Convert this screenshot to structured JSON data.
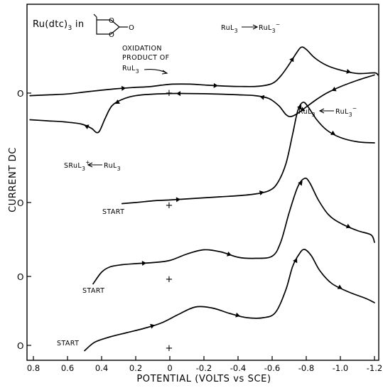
{
  "chart_data": {
    "type": "line",
    "title": "Ru(dtc)3 in",
    "xlabel": "POTENTIAL (VOLTS vs SCE)",
    "ylabel": "CURRENT DC",
    "xlim": [
      0.8,
      -1.2
    ],
    "x_reversed": true,
    "x_ticks": [
      {
        "value": 0.8,
        "label": "0.8"
      },
      {
        "value": 0.6,
        "label": "0.6"
      },
      {
        "value": 0.4,
        "label": "0.4"
      },
      {
        "value": 0.2,
        "label": "0.2"
      },
      {
        "value": 0.0,
        "label": "0"
      },
      {
        "value": -0.2,
        "label": "-0.2"
      },
      {
        "value": -0.4,
        "label": "-0.4"
      },
      {
        "value": -0.6,
        "label": "-0.6"
      },
      {
        "value": -0.8,
        "label": "-0.8"
      },
      {
        "value": -1.0,
        "label": "-1.0"
      },
      {
        "value": -1.2,
        "label": "-1.2"
      }
    ],
    "y_units": "arbitrary (traces offset vertically)",
    "series": [
      {
        "zero_label": "O",
        "start_label": "",
        "forward": [
          [
            0.82,
            -0.12
          ],
          [
            0.7,
            -0.08
          ],
          [
            0.6,
            -0.04
          ],
          [
            0.5,
            0.05
          ],
          [
            0.42,
            0.12
          ],
          [
            0.32,
            0.2
          ],
          [
            0.22,
            0.26
          ],
          [
            0.12,
            0.3
          ],
          [
            0.05,
            0.37
          ],
          [
            -0.02,
            0.42
          ],
          [
            -0.12,
            0.42
          ],
          [
            -0.22,
            0.37
          ],
          [
            -0.32,
            0.33
          ],
          [
            -0.42,
            0.31
          ],
          [
            -0.52,
            0.32
          ],
          [
            -0.6,
            0.45
          ],
          [
            -0.65,
            0.8
          ],
          [
            -0.7,
            1.35
          ],
          [
            -0.74,
            1.85
          ],
          [
            -0.77,
            2.15
          ],
          [
            -0.8,
            2.05
          ],
          [
            -0.85,
            1.65
          ],
          [
            -0.92,
            1.3
          ],
          [
            -1.0,
            1.08
          ],
          [
            -1.1,
            0.92
          ],
          [
            -1.2,
            0.95
          ],
          [
            -1.22,
            0.85
          ]
        ],
        "reverse": [
          [
            -1.2,
            0.85
          ],
          [
            -1.1,
            0.6
          ],
          [
            -1.0,
            0.3
          ],
          [
            -0.92,
            0.0
          ],
          [
            -0.86,
            -0.3
          ],
          [
            -0.8,
            -0.65
          ],
          [
            -0.75,
            -0.95
          ],
          [
            -0.71,
            -1.1
          ],
          [
            -0.68,
            -1.0
          ],
          [
            -0.64,
            -0.6
          ],
          [
            -0.58,
            -0.25
          ],
          [
            -0.5,
            -0.12
          ],
          [
            -0.4,
            -0.08
          ],
          [
            -0.3,
            -0.05
          ],
          [
            -0.2,
            -0.03
          ],
          [
            -0.1,
            -0.02
          ],
          [
            0.0,
            -0.02
          ],
          [
            0.1,
            -0.05
          ],
          [
            0.2,
            -0.12
          ],
          [
            0.28,
            -0.3
          ],
          [
            0.34,
            -0.6
          ],
          [
            0.38,
            -1.2
          ],
          [
            0.41,
            -1.75
          ],
          [
            0.43,
            -1.85
          ],
          [
            0.46,
            -1.65
          ],
          [
            0.52,
            -1.45
          ],
          [
            0.62,
            -1.35
          ],
          [
            0.72,
            -1.3
          ],
          [
            0.82,
            -1.25
          ]
        ]
      },
      {
        "zero_label": "O",
        "start_label": "START",
        "forward": [
          [
            0.28,
            -0.05
          ],
          [
            0.2,
            0.0
          ],
          [
            0.1,
            0.08
          ],
          [
            0.0,
            0.12
          ],
          [
            -0.1,
            0.17
          ],
          [
            -0.2,
            0.22
          ],
          [
            -0.3,
            0.27
          ],
          [
            -0.4,
            0.32
          ],
          [
            -0.5,
            0.4
          ],
          [
            -0.58,
            0.55
          ],
          [
            -0.63,
            0.9
          ],
          [
            -0.68,
            1.8
          ],
          [
            -0.72,
            3.2
          ],
          [
            -0.75,
            4.3
          ],
          [
            -0.78,
            4.7
          ],
          [
            -0.81,
            4.5
          ],
          [
            -0.86,
            3.9
          ],
          [
            -0.92,
            3.4
          ],
          [
            -1.0,
            3.05
          ],
          [
            -1.1,
            2.85
          ],
          [
            -1.2,
            2.8
          ]
        ]
      },
      {
        "zero_label": "O",
        "start_label": "START",
        "forward": [
          [
            0.45,
            -0.35
          ],
          [
            0.4,
            0.2
          ],
          [
            0.35,
            0.45
          ],
          [
            0.28,
            0.55
          ],
          [
            0.2,
            0.6
          ],
          [
            0.1,
            0.65
          ],
          [
            0.0,
            0.75
          ],
          [
            -0.1,
            1.05
          ],
          [
            -0.2,
            1.25
          ],
          [
            -0.3,
            1.15
          ],
          [
            -0.4,
            0.9
          ],
          [
            -0.5,
            0.85
          ],
          [
            -0.6,
            0.95
          ],
          [
            -0.65,
            1.6
          ],
          [
            -0.7,
            3.0
          ],
          [
            -0.75,
            4.2
          ],
          [
            -0.79,
            4.6
          ],
          [
            -0.82,
            4.4
          ],
          [
            -0.87,
            3.6
          ],
          [
            -0.93,
            2.9
          ],
          [
            -1.0,
            2.5
          ],
          [
            -1.1,
            2.15
          ],
          [
            -1.18,
            1.95
          ],
          [
            -1.2,
            1.6
          ]
        ]
      },
      {
        "zero_label": "O",
        "start_label": "START",
        "forward": [
          [
            0.5,
            -0.25
          ],
          [
            0.44,
            0.15
          ],
          [
            0.35,
            0.4
          ],
          [
            0.25,
            0.6
          ],
          [
            0.15,
            0.8
          ],
          [
            0.05,
            1.05
          ],
          [
            -0.05,
            1.45
          ],
          [
            -0.15,
            1.8
          ],
          [
            -0.25,
            1.75
          ],
          [
            -0.35,
            1.5
          ],
          [
            -0.45,
            1.3
          ],
          [
            -0.55,
            1.3
          ],
          [
            -0.62,
            1.55
          ],
          [
            -0.68,
            2.6
          ],
          [
            -0.72,
            3.7
          ],
          [
            -0.76,
            4.3
          ],
          [
            -0.79,
            4.5
          ],
          [
            -0.83,
            4.2
          ],
          [
            -0.88,
            3.5
          ],
          [
            -0.95,
            2.9
          ],
          [
            -1.05,
            2.5
          ],
          [
            -1.15,
            2.2
          ],
          [
            -1.2,
            2.0
          ]
        ]
      }
    ],
    "annotations": [
      {
        "text": "RuL3 → RuL3−"
      },
      {
        "text": "RuL3 ← RuL3−"
      },
      {
        "text": "SRuL3+ ← RuL3"
      },
      {
        "text": "OXIDATION PRODUCT OF RuL3"
      }
    ],
    "grid": false
  }
}
